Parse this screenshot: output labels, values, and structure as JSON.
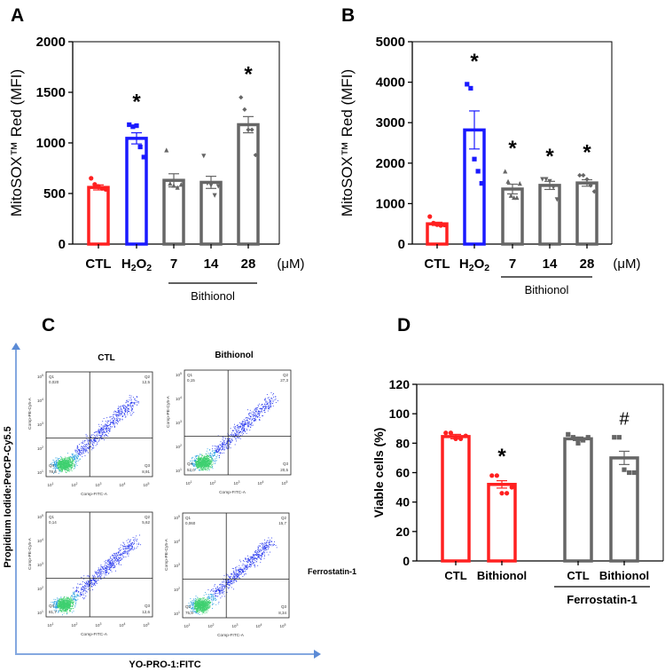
{
  "panels": {
    "a": "A",
    "b": "B",
    "c": "C",
    "d": "D"
  },
  "colors": {
    "red": "#ff2020",
    "blue": "#1a1aff",
    "gray": "#666666",
    "axis_arrow": "#5b8bd6"
  },
  "chart_data": [
    {
      "id": "A",
      "type": "bar",
      "ylabel": "MitoSOX™ Red (MFI)",
      "ylim": [
        0,
        2000
      ],
      "yticks": [
        0,
        500,
        1000,
        1500,
        2000
      ],
      "categories": [
        "CTL",
        "H2O2",
        "7",
        "14",
        "28"
      ],
      "unit": "(μM)",
      "group_label": "Bithionol",
      "group_span": [
        "7",
        "28"
      ],
      "values": [
        560,
        1045,
        630,
        610,
        1180
      ],
      "sem": [
        25,
        55,
        65,
        60,
        80
      ],
      "points": [
        [
          650,
          590,
          570,
          550,
          540
        ],
        [
          1180,
          1160,
          1170,
          960,
          860
        ],
        [
          930,
          600,
          580,
          560,
          590
        ],
        [
          870,
          600,
          580,
          480,
          570
        ],
        [
          1450,
          1330,
          1130,
          1130,
          880
        ]
      ],
      "markers": [
        "circle",
        "square",
        "triangle",
        "triangle-down",
        "diamond"
      ],
      "bar_colors": [
        "red",
        "blue",
        "gray",
        "gray",
        "gray"
      ],
      "annotations": [
        "",
        "*",
        "",
        "",
        "*"
      ]
    },
    {
      "id": "B",
      "type": "bar",
      "ylabel": "MitoSOX™ Red (MFI)",
      "ylim": [
        0,
        5000
      ],
      "yticks": [
        0,
        1000,
        2000,
        3000,
        4000,
        5000
      ],
      "categories": [
        "CTL",
        "H2O2",
        "7",
        "14",
        "28"
      ],
      "unit": "(μM)",
      "group_label": "Bithionol",
      "group_span": [
        "7",
        "28"
      ],
      "values": [
        500,
        2820,
        1360,
        1450,
        1510
      ],
      "sem": [
        40,
        470,
        120,
        100,
        80
      ],
      "points": [
        [
          680,
          520,
          480,
          460,
          470
        ],
        [
          3950,
          3850,
          2100,
          1800,
          1500
        ],
        [
          1800,
          1550,
          1200,
          1150,
          1150,
          1500
        ],
        [
          1600,
          1600,
          1550,
          1400,
          1100
        ],
        [
          1700,
          1700,
          1600,
          1450,
          1300
        ]
      ],
      "markers": [
        "circle",
        "square",
        "triangle",
        "triangle-down",
        "diamond"
      ],
      "bar_colors": [
        "red",
        "blue",
        "gray",
        "gray",
        "gray"
      ],
      "annotations": [
        "",
        "*",
        "*",
        "*",
        "*"
      ]
    },
    {
      "id": "D",
      "type": "bar",
      "ylabel": "Viable cells (%)",
      "ylim": [
        0,
        120
      ],
      "yticks": [
        0,
        20,
        40,
        60,
        80,
        100,
        120
      ],
      "categories": [
        "CTL",
        "Bithionol",
        "CTL",
        "Bithionol"
      ],
      "group_label": "Ferrostatin-1",
      "group_span": [
        "CTL",
        "Bithionol"
      ],
      "values": [
        84.5,
        52,
        83,
        70
      ],
      "sem": [
        1.5,
        2.5,
        1.2,
        4.5
      ],
      "points": [
        [
          87,
          87,
          83,
          83,
          85
        ],
        [
          58,
          58,
          46,
          46,
          50
        ],
        [
          86,
          84,
          80,
          82,
          84
        ],
        [
          84,
          84,
          62,
          60,
          60
        ]
      ],
      "markers": [
        "circle",
        "circle",
        "square",
        "square"
      ],
      "bar_colors": [
        "red",
        "red",
        "gray",
        "gray"
      ],
      "annotations": [
        "",
        "*",
        "",
        "#"
      ]
    }
  ],
  "flow": {
    "y_axis_label": "Propidium Iodide:PerCP-Cy5.5",
    "x_axis_label": "YO-PRO-1:FITC",
    "column_titles": [
      "CTL",
      "Bithionol"
    ],
    "row_label": "Ferrostatin-1",
    "plot_xlabel": "Comp-FITC-A",
    "plot_ylabel": "Comp-PE-Cy5-A",
    "ticks": [
      "1",
      "2",
      "3",
      "4",
      "5"
    ],
    "plots": [
      {
        "q1": [
          "Q1",
          "0,020"
        ],
        "q2": [
          "Q2",
          "12,5"
        ],
        "q3": [
          "Q3",
          "8,91"
        ],
        "q4": [
          "Q4",
          "78,6"
        ]
      },
      {
        "q1": [
          "Q1",
          "0,15"
        ],
        "q2": [
          "Q2",
          "27,3"
        ],
        "q3": [
          "Q3",
          "20,5"
        ],
        "q4": [
          "Q4",
          "52,0"
        ]
      },
      {
        "q1": [
          "Q1",
          "0,14"
        ],
        "q2": [
          "Q2",
          "5,62"
        ],
        "q3": [
          "Q3",
          "12,6"
        ],
        "q4": [
          "Q4",
          "81,7"
        ]
      },
      {
        "q1": [
          "Q1",
          "0,060"
        ],
        "q2": [
          "Q2",
          "15,7"
        ],
        "q3": [
          "Q3",
          "8,34"
        ],
        "q4": [
          "Q4",
          "75,9"
        ]
      }
    ]
  }
}
